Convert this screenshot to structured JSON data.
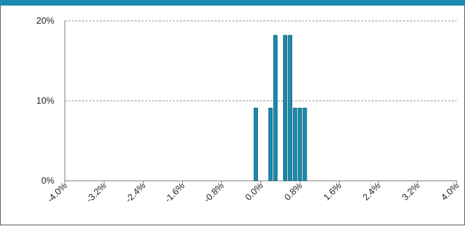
{
  "chart_data": {
    "type": "bar",
    "title": "",
    "xlabel": "",
    "ylabel": "",
    "x_unit": "percent return",
    "bin_width": 0.1,
    "xlim": [
      -4.0,
      4.0
    ],
    "ylim": [
      0,
      20
    ],
    "grid": true,
    "legend": "none",
    "bar_color": "#1b8ab0",
    "bar_edge_color": "#0d4d63",
    "x": [
      -0.1,
      0.2,
      0.3,
      0.5,
      0.6,
      0.7,
      0.8,
      0.9
    ],
    "values": [
      9.1,
      9.1,
      18.2,
      18.2,
      18.2,
      9.1,
      9.1,
      9.1
    ],
    "x_ticks": [
      -4.0,
      -3.2,
      -2.4,
      -1.6,
      -0.8,
      0.0,
      0.8,
      1.6,
      2.4,
      3.2,
      4.0
    ],
    "x_tick_labels": [
      "-4.0%",
      "-3.2%",
      "-2.4%",
      "-1.6%",
      "-0.8%",
      "0.0%",
      "0.8%",
      "1.6%",
      "2.4%",
      "3.2%",
      "4.0%"
    ],
    "y_ticks": [
      0,
      10,
      20
    ],
    "y_tick_labels": [
      "0%",
      "10%",
      "20%"
    ]
  }
}
